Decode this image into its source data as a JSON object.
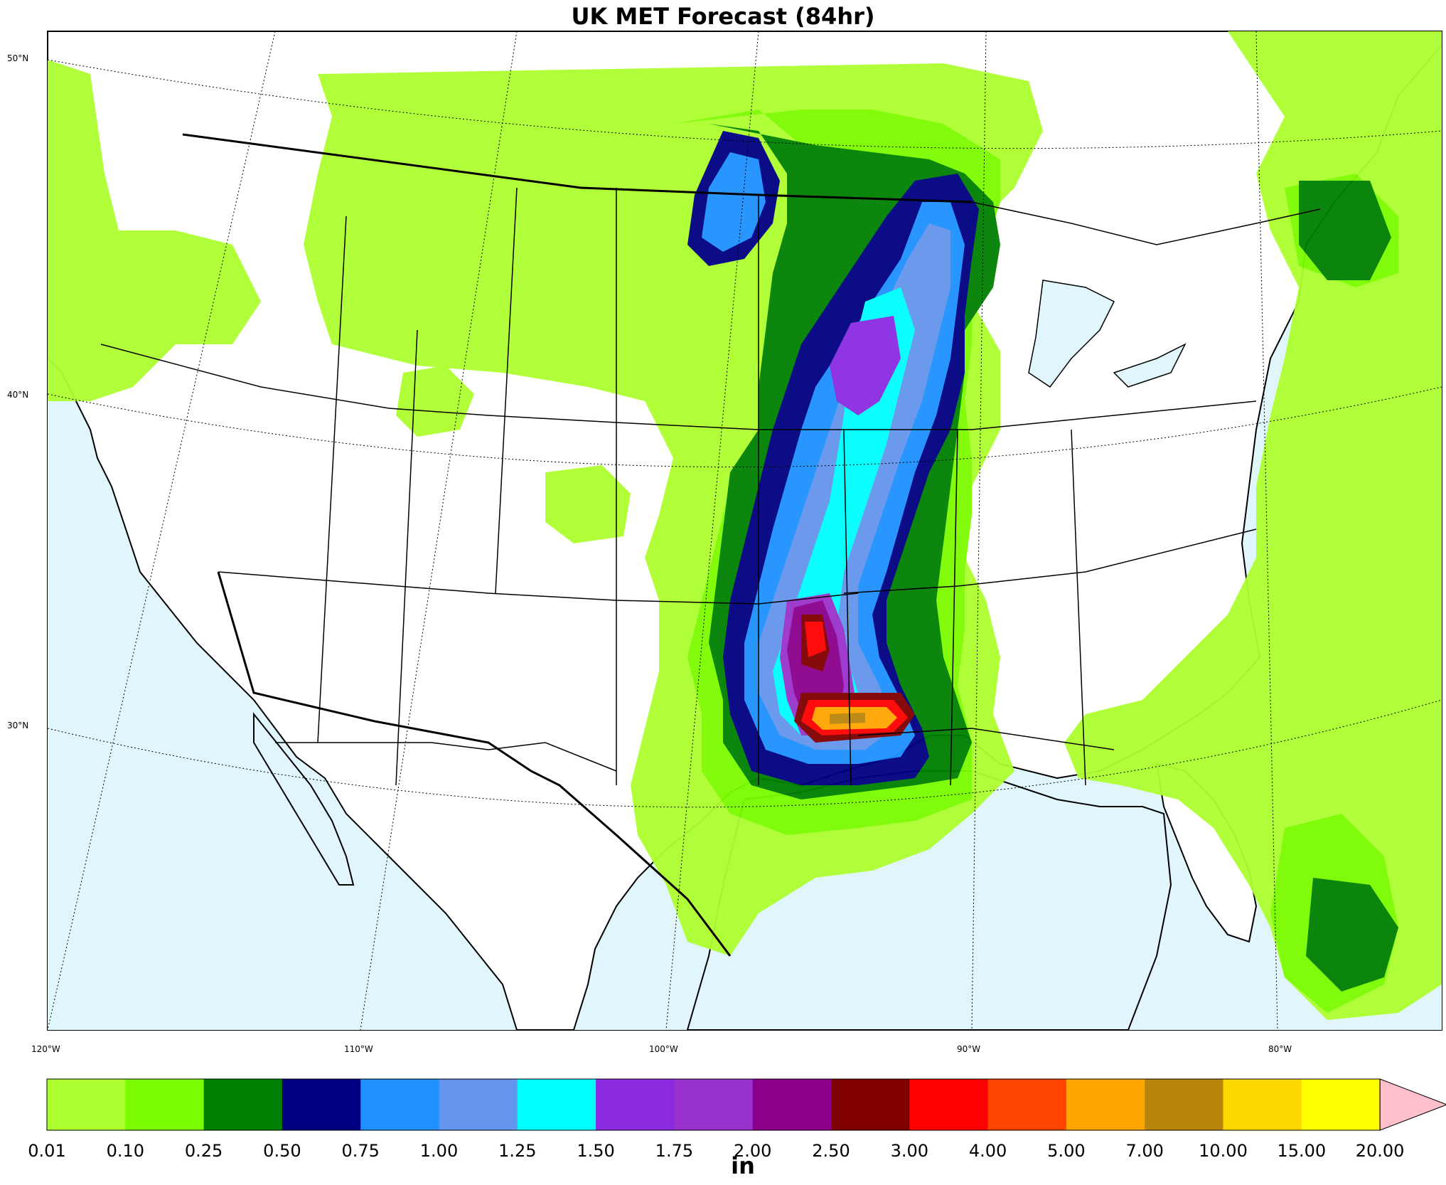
{
  "title": "UK MET Forecast (84hr)",
  "map": {
    "lat_labels": [
      "50°N",
      "40°N",
      "30°N"
    ],
    "lon_labels": [
      "120°W",
      "110°W",
      "100°W",
      "90°W",
      "80°W"
    ],
    "projection": "lambert-conformal",
    "ocean_color": "#e0f5fc",
    "land_color": "#ffffff"
  },
  "colorbar": {
    "levels": [
      "0.01",
      "0.10",
      "0.25",
      "0.50",
      "0.75",
      "1.00",
      "1.25",
      "1.50",
      "1.75",
      "2.00",
      "2.50",
      "3.00",
      "4.00",
      "5.00",
      "7.00",
      "10.00",
      "15.00",
      "20.00"
    ],
    "colors": [
      "#adff2f",
      "#7cfc00",
      "#008000",
      "#000080",
      "#1e90ff",
      "#6495ed",
      "#00ffff",
      "#8a2be2",
      "#9932cc",
      "#8b008b",
      "#800000",
      "#ff0000",
      "#ff4500",
      "#ffa500",
      "#b8860b",
      "#ffd700",
      "#ffff00"
    ],
    "extend_color": "#ffc0cb",
    "units": "in"
  }
}
